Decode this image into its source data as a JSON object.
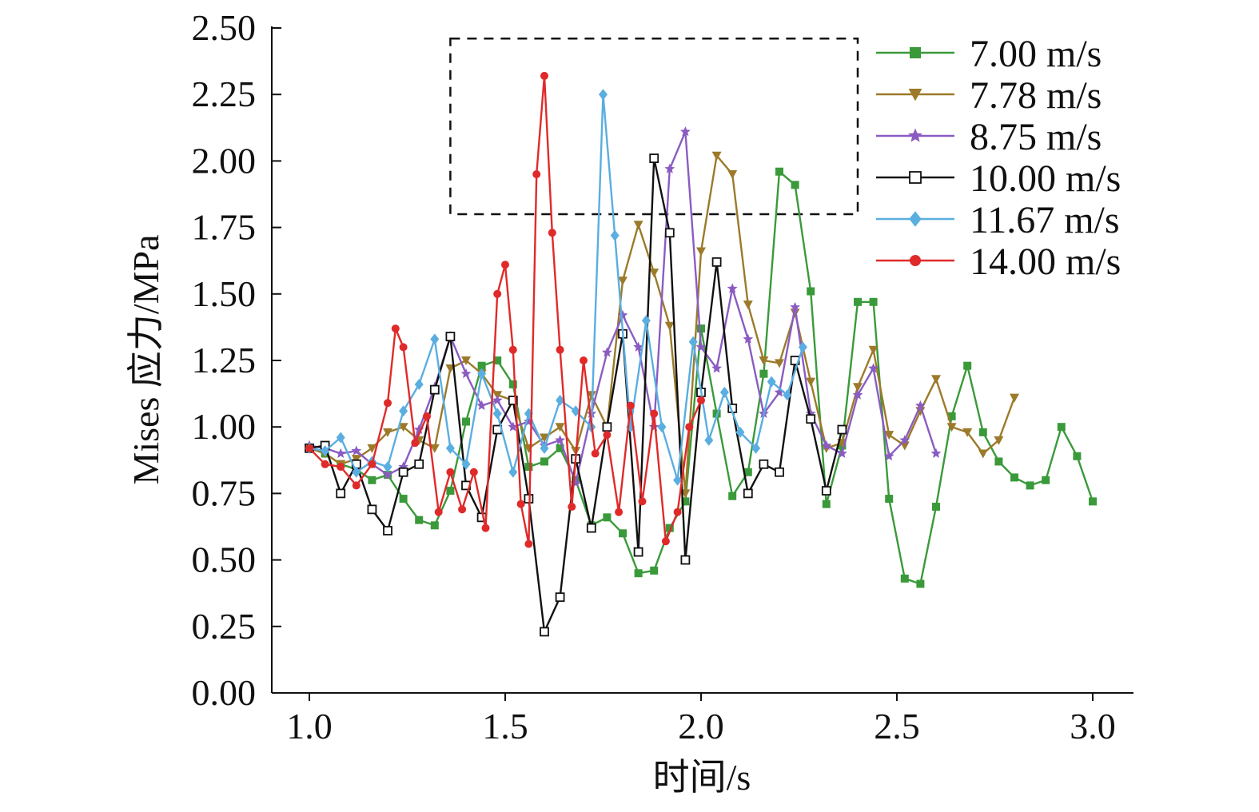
{
  "chart_data": {
    "type": "line",
    "xlabel": "时间/s",
    "ylabel": "Mises 应力/MPa",
    "xlim": [
      1.0,
      3.0
    ],
    "ylim": [
      0.0,
      2.5
    ],
    "x_ticks": [
      "1.0",
      "1.5",
      "2.0",
      "2.5",
      "3.0"
    ],
    "y_ticks": [
      "0.00",
      "0.25",
      "0.50",
      "0.75",
      "1.00",
      "1.25",
      "1.50",
      "1.75",
      "2.00",
      "2.25",
      "2.50"
    ],
    "legend_position": "top-right",
    "annotation_box": {
      "style": "dashed",
      "x_range": [
        1.36,
        2.4
      ],
      "y_range": [
        1.8,
        2.46
      ]
    },
    "series": [
      {
        "name": "7.00 m/s",
        "color": "#3a9a3a",
        "marker": "square",
        "x": [
          1.0,
          1.04,
          1.08,
          1.12,
          1.16,
          1.2,
          1.24,
          1.28,
          1.32,
          1.36,
          1.4,
          1.44,
          1.48,
          1.52,
          1.56,
          1.6,
          1.64,
          1.68,
          1.72,
          1.76,
          1.8,
          1.84,
          1.88,
          1.92,
          1.96,
          2.0,
          2.04,
          2.08,
          2.12,
          2.16,
          2.2,
          2.24,
          2.28,
          2.32,
          2.36,
          2.4,
          2.44,
          2.48,
          2.52,
          2.56,
          2.6,
          2.64,
          2.68,
          2.72,
          2.76,
          2.8,
          2.84,
          2.88,
          2.92,
          2.96,
          3.0
        ],
        "y": [
          0.92,
          0.9,
          0.86,
          0.84,
          0.8,
          0.82,
          0.73,
          0.65,
          0.63,
          0.76,
          1.02,
          1.23,
          1.25,
          1.16,
          0.85,
          0.87,
          0.92,
          0.8,
          0.63,
          0.66,
          0.6,
          0.45,
          0.46,
          0.62,
          0.72,
          1.37,
          1.05,
          0.74,
          0.83,
          1.2,
          1.96,
          1.91,
          1.51,
          0.71,
          0.93,
          1.47,
          1.47,
          0.73,
          0.43,
          0.41,
          0.7,
          1.04,
          1.23,
          0.98,
          0.87,
          0.81,
          0.78,
          0.8,
          1.0,
          0.89,
          0.72
        ]
      },
      {
        "name": "7.78 m/s",
        "color": "#9c7a2a",
        "marker": "triangle-down",
        "x": [
          1.0,
          1.04,
          1.08,
          1.12,
          1.16,
          1.2,
          1.24,
          1.28,
          1.32,
          1.36,
          1.4,
          1.44,
          1.48,
          1.52,
          1.56,
          1.6,
          1.64,
          1.68,
          1.72,
          1.76,
          1.8,
          1.84,
          1.88,
          1.92,
          1.96,
          2.0,
          2.04,
          2.08,
          2.12,
          2.16,
          2.2,
          2.24,
          2.28,
          2.32,
          2.36,
          2.4,
          2.44,
          2.48,
          2.52,
          2.56,
          2.6,
          2.64,
          2.68,
          2.72,
          2.76,
          2.8
        ],
        "y": [
          0.92,
          0.9,
          0.86,
          0.88,
          0.92,
          0.98,
          1.0,
          0.95,
          0.92,
          1.22,
          1.25,
          1.2,
          1.12,
          1.1,
          0.92,
          0.96,
          1.0,
          0.91,
          1.12,
          1.0,
          1.55,
          1.76,
          1.58,
          1.38,
          0.75,
          1.66,
          2.02,
          1.95,
          1.46,
          1.25,
          1.24,
          1.43,
          1.17,
          0.92,
          0.94,
          1.15,
          1.29,
          0.97,
          0.93,
          1.06,
          1.18,
          1.0,
          0.98,
          0.9,
          0.95,
          1.11
        ]
      },
      {
        "name": "8.75 m/s",
        "color": "#8a5cc2",
        "marker": "star",
        "x": [
          1.0,
          1.04,
          1.08,
          1.12,
          1.16,
          1.2,
          1.24,
          1.28,
          1.32,
          1.36,
          1.4,
          1.44,
          1.48,
          1.52,
          1.56,
          1.6,
          1.64,
          1.68,
          1.72,
          1.76,
          1.8,
          1.84,
          1.88,
          1.92,
          1.96,
          2.0,
          2.04,
          2.08,
          2.12,
          2.16,
          2.2,
          2.24,
          2.28,
          2.32,
          2.36,
          2.4,
          2.44,
          2.48,
          2.52,
          2.56,
          2.6
        ],
        "y": [
          0.93,
          0.92,
          0.9,
          0.91,
          0.86,
          0.82,
          0.85,
          0.99,
          1.15,
          1.34,
          1.2,
          1.08,
          1.1,
          1.0,
          1.02,
          0.93,
          0.95,
          0.79,
          1.05,
          1.28,
          1.42,
          1.3,
          1.0,
          1.97,
          2.11,
          1.3,
          1.22,
          1.52,
          1.33,
          1.05,
          1.13,
          1.45,
          1.05,
          0.93,
          0.9,
          1.12,
          1.22,
          0.89,
          0.95,
          1.08,
          0.9
        ]
      },
      {
        "name": "10.00 m/s",
        "color": "#111111",
        "marker": "square-open",
        "x": [
          1.0,
          1.04,
          1.08,
          1.12,
          1.16,
          1.2,
          1.24,
          1.28,
          1.32,
          1.36,
          1.4,
          1.44,
          1.48,
          1.52,
          1.56,
          1.6,
          1.64,
          1.68,
          1.72,
          1.76,
          1.8,
          1.84,
          1.88,
          1.92,
          1.96,
          2.0,
          2.04,
          2.08,
          2.12,
          2.16,
          2.2,
          2.24,
          2.28,
          2.32,
          2.36
        ],
        "y": [
          0.92,
          0.93,
          0.75,
          0.86,
          0.69,
          0.61,
          0.83,
          0.86,
          1.14,
          1.34,
          0.78,
          0.66,
          0.99,
          1.1,
          0.73,
          0.23,
          0.36,
          0.88,
          0.62,
          1.0,
          1.35,
          0.53,
          2.01,
          1.73,
          0.5,
          1.13,
          1.62,
          1.07,
          0.75,
          0.86,
          0.83,
          1.25,
          1.03,
          0.76,
          0.99
        ]
      },
      {
        "name": "11.67 m/s",
        "color": "#5aaee0",
        "marker": "diamond",
        "x": [
          1.0,
          1.04,
          1.08,
          1.12,
          1.16,
          1.2,
          1.24,
          1.28,
          1.32,
          1.36,
          1.4,
          1.44,
          1.48,
          1.52,
          1.56,
          1.6,
          1.64,
          1.68,
          1.72,
          1.75,
          1.78,
          1.82,
          1.86,
          1.9,
          1.94,
          1.98,
          2.02,
          2.06,
          2.1,
          2.14,
          2.18,
          2.22,
          2.26
        ],
        "y": [
          0.92,
          0.91,
          0.96,
          0.83,
          0.87,
          0.85,
          1.06,
          1.16,
          1.33,
          0.92,
          0.86,
          1.2,
          1.05,
          0.83,
          1.05,
          0.92,
          1.1,
          1.06,
          1.0,
          2.25,
          1.72,
          1.0,
          1.4,
          1.0,
          0.8,
          1.32,
          0.95,
          1.13,
          0.98,
          0.92,
          1.17,
          1.12,
          1.3
        ]
      },
      {
        "name": "14.00 m/s",
        "color": "#e02a2a",
        "marker": "circle",
        "x": [
          1.0,
          1.04,
          1.08,
          1.12,
          1.16,
          1.2,
          1.22,
          1.24,
          1.27,
          1.3,
          1.33,
          1.36,
          1.39,
          1.42,
          1.45,
          1.48,
          1.5,
          1.52,
          1.54,
          1.56,
          1.58,
          1.6,
          1.62,
          1.64,
          1.67,
          1.7,
          1.73,
          1.76,
          1.79,
          1.82,
          1.85,
          1.88,
          1.91,
          1.94,
          1.97,
          2.0
        ],
        "y": [
          0.92,
          0.86,
          0.85,
          0.78,
          0.86,
          1.09,
          1.37,
          1.3,
          0.94,
          1.04,
          0.68,
          0.83,
          0.69,
          0.83,
          0.62,
          1.5,
          1.61,
          1.29,
          0.71,
          0.56,
          1.95,
          2.32,
          1.73,
          1.29,
          0.7,
          1.25,
          0.9,
          0.97,
          0.68,
          1.08,
          0.72,
          1.05,
          0.57,
          0.68,
          1.0,
          1.1
        ]
      }
    ]
  }
}
